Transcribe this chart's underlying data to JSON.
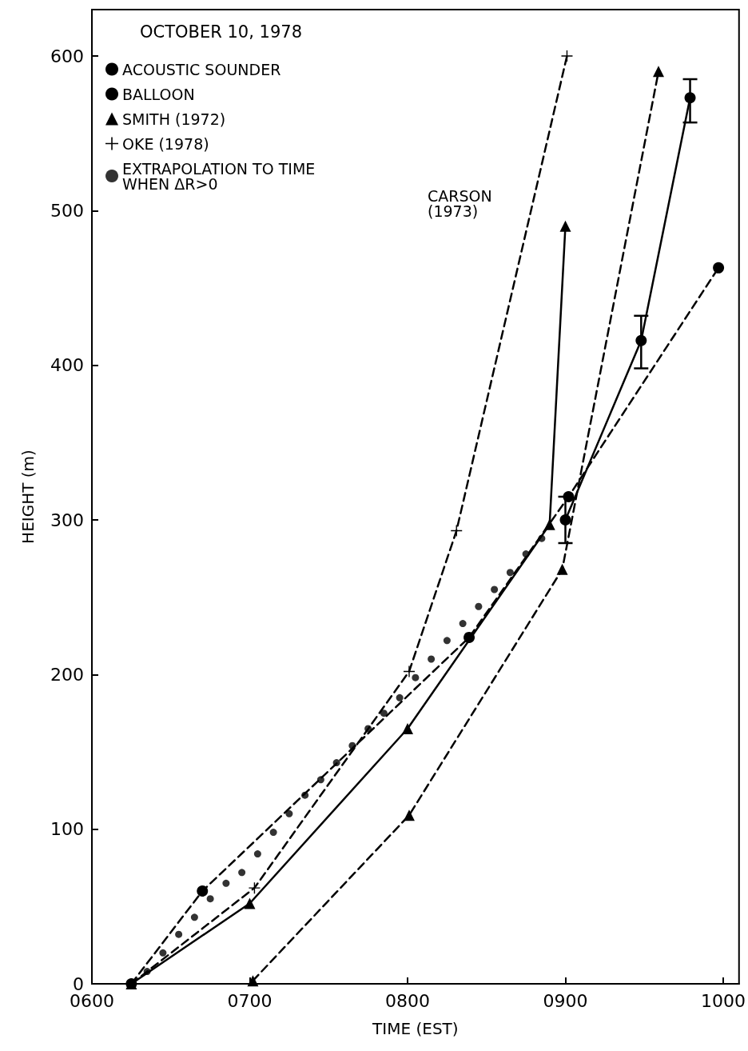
{
  "chart_data": {
    "type": "line",
    "title": "OCTOBER 10, 1978",
    "xlabel": "TIME (EST)",
    "ylabel": "HEIGHT (m)",
    "xlim": [
      600,
      1010
    ],
    "xticks": [
      {
        "value": 600,
        "label": "0600"
      },
      {
        "value": 700,
        "label": "0700"
      },
      {
        "value": 800,
        "label": "0800"
      },
      {
        "value": 900,
        "label": "0900"
      },
      {
        "value": 1000,
        "label": "1000"
      }
    ],
    "ylim": [
      0,
      630
    ],
    "yticks": [
      0,
      100,
      200,
      300,
      400,
      500,
      600
    ],
    "grid": false,
    "legend": "top left",
    "annotations": [
      "CARSON (1973)"
    ],
    "series": [
      {
        "name": "ACOUSTIC SOUNDER",
        "color": "#000000",
        "marker": "circle",
        "line_style": "solid",
        "x": [
          900,
          948,
          979
        ],
        "values": [
          300,
          416,
          573
        ],
        "errors": [
          [
            285,
            315
          ],
          [
            398,
            432
          ],
          [
            557,
            585
          ]
        ]
      },
      {
        "name": "BALLOON",
        "color": "#000000",
        "marker": "circle",
        "line_style": "dashed",
        "x": [
          625,
          670,
          839,
          902,
          997
        ],
        "values": [
          0,
          60,
          224,
          315,
          463
        ]
      },
      {
        "name": "SMITH (1972)",
        "color": "#000000",
        "marker": "triangle",
        "line_style": "dashed",
        "x": [
          702,
          801,
          898,
          959
        ],
        "values": [
          2,
          109,
          268,
          590
        ]
      },
      {
        "name": "OKE (1978)",
        "color": "#000000",
        "marker": "cross",
        "line_style": "dashed",
        "x": [
          625,
          703,
          801,
          831,
          901
        ],
        "values": [
          0,
          62,
          202,
          293,
          600
        ]
      },
      {
        "name": "EXTRAPOLATION TO TIME WHEN ΔR>0",
        "type": "scatter",
        "color": "#000000",
        "marker": "circle",
        "x": [
          635,
          645,
          655,
          665,
          675,
          685,
          695,
          705,
          715,
          725,
          735,
          745,
          755,
          765,
          775,
          785,
          795,
          805,
          815,
          825,
          835,
          845,
          855,
          865,
          875,
          885
        ],
        "values": [
          8,
          20,
          32,
          43,
          55,
          65,
          72,
          84,
          98,
          110,
          122,
          132,
          143,
          154,
          165,
          175,
          185,
          198,
          210,
          222,
          233,
          244,
          255,
          266,
          278,
          288
        ]
      },
      {
        "color": "#000000",
        "marker": "triangle",
        "line_style": "solid",
        "x": [
          625,
          700,
          800,
          890,
          900
        ],
        "values": [
          0,
          52,
          165,
          297,
          490
        ]
      }
    ]
  }
}
